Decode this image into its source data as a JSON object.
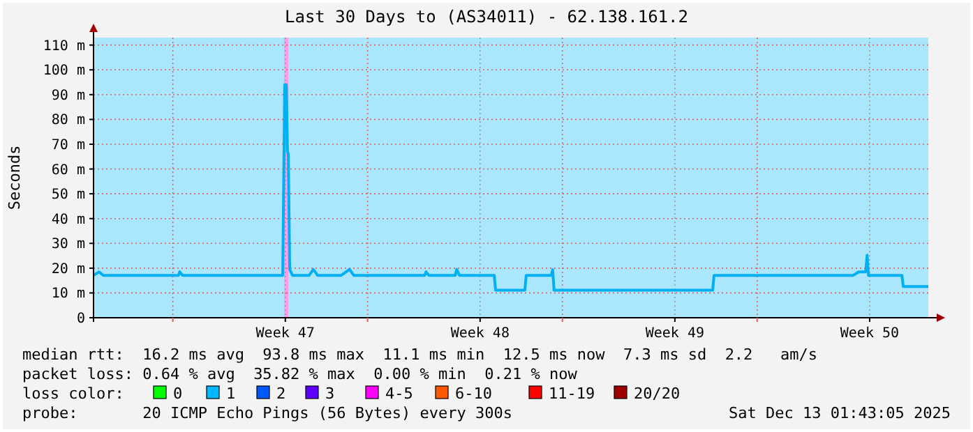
{
  "chart_data": {
    "type": "line",
    "title": "Last 30 Days to (AS34011) - 62.138.161.2",
    "ylabel": "Seconds",
    "x": [
      "2025-11-14T03:36",
      "2025-11-14T08:24",
      "2025-11-14T12:00",
      "2025-11-17T04:48",
      "2025-11-17T06:00",
      "2025-11-17T08:24",
      "2025-11-20T22:48",
      "2025-11-21T00:29",
      "2025-11-21T01:55",
      "2025-11-21T02:53",
      "2025-11-21T03:36",
      "2025-11-21T04:48",
      "2025-11-21T07:12",
      "2025-11-21T21:36",
      "2025-11-22T01:12",
      "2025-11-22T04:48",
      "2025-11-23T01:12",
      "2025-11-23T08:24",
      "2025-11-23T12:00",
      "2025-11-26T01:12",
      "2025-11-26T02:24",
      "2025-11-26T04:48",
      "2025-11-27T03:36",
      "2025-11-27T04:48",
      "2025-11-27T07:12",
      "2025-11-28T13:12",
      "2025-11-28T14:24",
      "2025-11-29T15:36",
      "2025-11-29T16:48",
      "2025-11-30T14:24",
      "2025-11-30T15:36",
      "2025-11-30T16:48",
      "2025-12-06T09:36",
      "2025-12-06T10:48",
      "2025-12-11T10:48",
      "2025-12-11T15:36",
      "2025-12-11T21:36",
      "2025-12-11T22:48",
      "2025-12-12T00:00",
      "2025-12-13T04:48",
      "2025-12-13T06:00",
      "2025-12-14T03:36"
    ],
    "series": [
      {
        "color": "#00b0f0",
        "values": [
          17.1,
          18.5,
          17.1,
          17.1,
          18.5,
          17.1,
          17.1,
          94,
          94,
          67,
          66,
          19.5,
          17.1,
          17.1,
          19.5,
          17.1,
          17.1,
          19.5,
          17.1,
          17.1,
          18.5,
          17.1,
          17.1,
          19.5,
          17.1,
          17.1,
          11.1,
          11.1,
          17.1,
          17.1,
          19.4,
          11.1,
          11.1,
          17.1,
          17.1,
          18.5,
          18.5,
          25.2,
          17.1,
          17.1,
          12.6,
          12.6
        ]
      }
    ],
    "xlim": [
      "2025-11-14T03:36",
      "2025-12-14T03:36"
    ],
    "xticks": [
      {
        "value": "2025-11-17",
        "label": null
      },
      {
        "value": "2025-11-21T01:00",
        "label": "Week 47"
      },
      {
        "value": "2025-11-24",
        "label": null
      },
      {
        "value": "2025-11-28T01:00",
        "label": "Week 48"
      },
      {
        "value": "2025-12-01",
        "label": null
      },
      {
        "value": "2025-12-05T01:00",
        "label": "Week 49"
      },
      {
        "value": "2025-12-08",
        "label": null
      },
      {
        "value": "2025-12-12T01:00",
        "label": "Week 50"
      }
    ],
    "ylim": [
      0,
      113
    ],
    "yticks": [
      0,
      {
        "value": 10,
        "label": "10 m"
      },
      {
        "value": 20,
        "label": "20 m"
      },
      {
        "value": 30,
        "label": "30 m"
      },
      {
        "value": 40,
        "label": "40 m"
      },
      {
        "value": 50,
        "label": "50 m"
      },
      {
        "value": 60,
        "label": "60 m"
      },
      {
        "value": 70,
        "label": "70 m"
      },
      {
        "value": 80,
        "label": "80 m"
      },
      {
        "value": 90,
        "label": "90 m"
      },
      {
        "value": 100,
        "label": "100 m"
      },
      {
        "value": 110,
        "label": "110 m"
      }
    ],
    "grid": true,
    "bands": [
      {
        "axis": "x",
        "from": "2025-11-14T03:36",
        "to": "2025-12-14T03:36",
        "color": "#aae6fc"
      },
      {
        "axis": "x",
        "from": "2025-11-21T00:00",
        "to": "2025-11-21T03:36",
        "color": "#ff9bef"
      }
    ],
    "annotations": [
      "median rtt:  16.2 ms avg  93.8 ms max  11.1 ms min  12.5 ms now  7.3 ms sd  2.2   am/s",
      "packet loss: 0.64 % avg  35.82 % max  0.00 % min  0.21 % now",
      "loss color:",
      "0",
      "1",
      "2",
      "3",
      "4-5",
      "6-10",
      "11-19",
      "20/20",
      "probe:       20 ICMP Echo Pings (56 Bytes) every 300s",
      "Sat Dec 13 01:43:05 2025"
    ]
  }
}
